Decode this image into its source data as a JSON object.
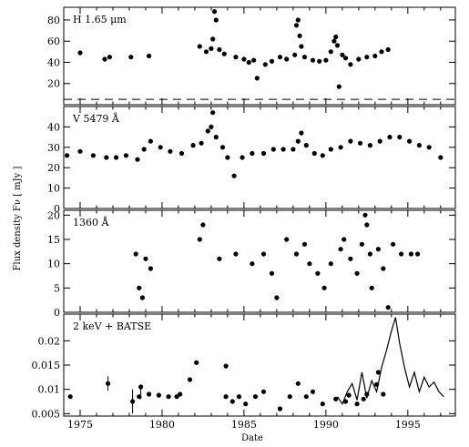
{
  "chart_data": {
    "type": "scatter",
    "xlabel": "Date",
    "ylabel": "Flux density Fν [ mJy ]",
    "x_ticks": [
      "1975",
      "1980",
      "1985",
      "1990",
      "1995"
    ],
    "x_range": [
      1974.0,
      1997.9
    ],
    "panels": [
      {
        "label": "H 1.65 μm",
        "ylim": [
          0,
          92
        ],
        "yticks": [
          20,
          40,
          60,
          80
        ],
        "dashed_line": 5,
        "points": [
          [
            1975.0,
            49
          ],
          [
            1976.5,
            43
          ],
          [
            1976.8,
            45
          ],
          [
            1978.1,
            45
          ],
          [
            1979.2,
            46
          ],
          [
            1982.3,
            55
          ],
          [
            1982.7,
            50
          ],
          [
            1983.0,
            53
          ],
          [
            1983.1,
            62
          ],
          [
            1983.2,
            88
          ],
          [
            1983.3,
            80
          ],
          [
            1983.5,
            52
          ],
          [
            1983.8,
            48
          ],
          [
            1984.5,
            45
          ],
          [
            1985.0,
            43
          ],
          [
            1985.3,
            40
          ],
          [
            1985.6,
            42
          ],
          [
            1985.8,
            25
          ],
          [
            1986.3,
            38
          ],
          [
            1986.7,
            41
          ],
          [
            1987.2,
            45
          ],
          [
            1987.6,
            43
          ],
          [
            1988.1,
            47
          ],
          [
            1988.2,
            75
          ],
          [
            1988.3,
            80
          ],
          [
            1988.4,
            65
          ],
          [
            1988.5,
            55
          ],
          [
            1988.7,
            45
          ],
          [
            1989.2,
            42
          ],
          [
            1989.6,
            41
          ],
          [
            1990.0,
            42
          ],
          [
            1990.3,
            50
          ],
          [
            1990.5,
            60
          ],
          [
            1990.6,
            64
          ],
          [
            1990.7,
            56
          ],
          [
            1990.8,
            17
          ],
          [
            1991.0,
            47
          ],
          [
            1991.2,
            44
          ],
          [
            1991.5,
            38
          ],
          [
            1992.0,
            43
          ],
          [
            1992.5,
            45
          ],
          [
            1993.0,
            46
          ],
          [
            1993.4,
            50
          ],
          [
            1993.8,
            52
          ]
        ]
      },
      {
        "label": "V 5479 Å",
        "ylim": [
          0,
          50
        ],
        "yticks": [
          0,
          10,
          20,
          30,
          40
        ],
        "points": [
          [
            1974.2,
            26
          ],
          [
            1975.0,
            28
          ],
          [
            1975.8,
            26
          ],
          [
            1976.6,
            25
          ],
          [
            1977.2,
            25
          ],
          [
            1977.8,
            26
          ],
          [
            1978.5,
            24
          ],
          [
            1978.9,
            29
          ],
          [
            1979.3,
            33
          ],
          [
            1979.9,
            30
          ],
          [
            1980.5,
            28
          ],
          [
            1981.2,
            27
          ],
          [
            1981.9,
            31
          ],
          [
            1982.4,
            32
          ],
          [
            1982.8,
            38
          ],
          [
            1983.0,
            40
          ],
          [
            1983.1,
            47
          ],
          [
            1983.3,
            35
          ],
          [
            1983.7,
            30
          ],
          [
            1984.0,
            25
          ],
          [
            1984.4,
            16
          ],
          [
            1984.9,
            25
          ],
          [
            1985.5,
            27
          ],
          [
            1986.2,
            27
          ],
          [
            1986.8,
            29
          ],
          [
            1987.4,
            29
          ],
          [
            1988.0,
            29
          ],
          [
            1988.3,
            33
          ],
          [
            1988.5,
            37
          ],
          [
            1988.8,
            31
          ],
          [
            1989.3,
            27
          ],
          [
            1989.8,
            26
          ],
          [
            1990.3,
            29
          ],
          [
            1990.9,
            30
          ],
          [
            1991.5,
            33
          ],
          [
            1992.1,
            32
          ],
          [
            1992.7,
            31
          ],
          [
            1993.3,
            33
          ],
          [
            1993.9,
            35
          ],
          [
            1994.5,
            35
          ],
          [
            1995.1,
            33
          ],
          [
            1995.7,
            31
          ],
          [
            1996.3,
            30
          ],
          [
            1997.0,
            25
          ]
        ]
      },
      {
        "label": "1360 Å",
        "ylim": [
          0,
          21
        ],
        "yticks": [
          0,
          5,
          10,
          15,
          20
        ],
        "points": [
          [
            1978.4,
            12
          ],
          [
            1978.6,
            5
          ],
          [
            1978.8,
            3
          ],
          [
            1979.0,
            11
          ],
          [
            1979.3,
            9
          ],
          [
            1982.3,
            15
          ],
          [
            1982.5,
            18
          ],
          [
            1983.5,
            11
          ],
          [
            1984.5,
            12
          ],
          [
            1985.5,
            10
          ],
          [
            1986.2,
            12
          ],
          [
            1986.7,
            8
          ],
          [
            1987.0,
            3
          ],
          [
            1987.6,
            15
          ],
          [
            1988.2,
            12
          ],
          [
            1988.7,
            14
          ],
          [
            1989.0,
            10
          ],
          [
            1989.5,
            8
          ],
          [
            1989.9,
            5
          ],
          [
            1990.3,
            10
          ],
          [
            1990.9,
            13
          ],
          [
            1991.1,
            15
          ],
          [
            1991.5,
            11
          ],
          [
            1991.9,
            8
          ],
          [
            1992.2,
            14
          ],
          [
            1992.4,
            20
          ],
          [
            1992.5,
            18
          ],
          [
            1992.7,
            12
          ],
          [
            1992.8,
            5
          ],
          [
            1993.2,
            13
          ],
          [
            1993.5,
            9
          ],
          [
            1993.8,
            1
          ],
          [
            1994.1,
            14
          ],
          [
            1994.6,
            12
          ],
          [
            1995.2,
            12
          ],
          [
            1995.6,
            12
          ]
        ]
      },
      {
        "label": "2 keV + BATSE",
        "ylim": [
          0.0045,
          0.0255
        ],
        "yticks": [
          0.005,
          0.01,
          0.015,
          0.02
        ],
        "points": [
          [
            1974.4,
            0.0085
          ],
          [
            1976.7,
            0.0112
          ],
          [
            1978.2,
            0.0075
          ],
          [
            1978.6,
            0.0085
          ],
          [
            1978.7,
            0.0105
          ],
          [
            1979.2,
            0.009
          ],
          [
            1979.8,
            0.0088
          ],
          [
            1980.4,
            0.0085
          ],
          [
            1980.9,
            0.0085
          ],
          [
            1981.1,
            0.009
          ],
          [
            1981.7,
            0.012
          ],
          [
            1982.1,
            0.0155
          ],
          [
            1983.9,
            0.0148
          ],
          [
            1983.9,
            0.0085
          ],
          [
            1984.3,
            0.0075
          ],
          [
            1984.7,
            0.0085
          ],
          [
            1985.1,
            0.007
          ],
          [
            1985.7,
            0.0085
          ],
          [
            1986.2,
            0.0095
          ],
          [
            1987.2,
            0.006
          ],
          [
            1987.8,
            0.0085
          ],
          [
            1988.3,
            0.0112
          ],
          [
            1988.8,
            0.0085
          ],
          [
            1989.2,
            0.0095
          ],
          [
            1989.8,
            0.007
          ],
          [
            1990.6,
            0.008
          ],
          [
            1991.2,
            0.0075
          ],
          [
            1991.4,
            0.0088
          ],
          [
            1991.9,
            0.007
          ],
          [
            1992.3,
            0.008
          ],
          [
            1992.5,
            0.009
          ],
          [
            1993.1,
            0.011
          ],
          [
            1993.2,
            0.0135
          ],
          [
            1993.5,
            0.009
          ]
        ],
        "error_bars": [
          [
            1976.7,
            0.0112,
            0.0015
          ],
          [
            1978.2,
            0.0075,
            0.0025
          ],
          [
            1978.7,
            0.0095,
            0.0015
          ]
        ],
        "batse_line": [
          [
            1990.7,
            0.0085
          ],
          [
            1991.0,
            0.007
          ],
          [
            1991.3,
            0.0095
          ],
          [
            1991.6,
            0.0112
          ],
          [
            1991.9,
            0.0078
          ],
          [
            1992.2,
            0.0135
          ],
          [
            1992.5,
            0.0082
          ],
          [
            1992.8,
            0.0118
          ],
          [
            1993.1,
            0.0095
          ],
          [
            1993.4,
            0.0145
          ],
          [
            1993.7,
            0.018
          ],
          [
            1994.0,
            0.022
          ],
          [
            1994.25,
            0.0248
          ],
          [
            1994.5,
            0.0195
          ],
          [
            1994.8,
            0.0145
          ],
          [
            1995.1,
            0.0105
          ],
          [
            1995.4,
            0.0135
          ],
          [
            1995.7,
            0.0095
          ],
          [
            1996.0,
            0.0125
          ],
          [
            1996.3,
            0.0105
          ],
          [
            1996.6,
            0.0115
          ],
          [
            1996.9,
            0.0095
          ],
          [
            1997.2,
            0.0085
          ]
        ]
      }
    ]
  }
}
